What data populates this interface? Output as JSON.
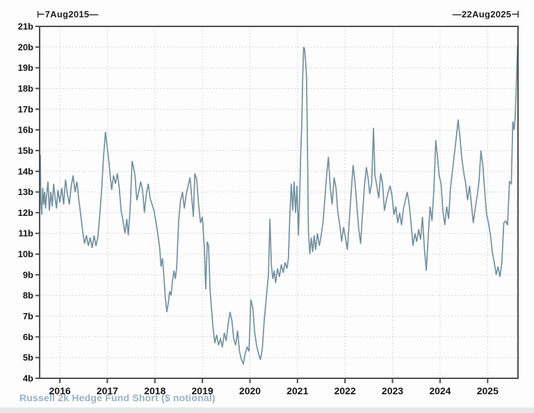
{
  "chart": {
    "start_annotation": "⊢7Aug2015—",
    "end_annotation": "—22Aug2025⊣",
    "footer_label": "Russell 2k Hedge Fund Short ($ notional)",
    "footer_color": "#9ab0c4",
    "frame_color": "#4d4d4d",
    "grid_color": "#c7c7c7"
  },
  "chart_data": {
    "type": "line",
    "title": "Russell 2k Hedge Fund Short ($ notional)",
    "xlabel": "",
    "ylabel": "",
    "x_start_label": "7Aug2015",
    "x_end_label": "22Aug2025",
    "x_range": [
      2015.575,
      2025.64
    ],
    "y_range": [
      4,
      21
    ],
    "grid": "dotted",
    "legend": "none",
    "line_color": "#73909e",
    "y_ticks": [
      {
        "value": 21,
        "label": "21b"
      },
      {
        "value": 20,
        "label": "20b"
      },
      {
        "value": 19,
        "label": "19b"
      },
      {
        "value": 18,
        "label": "18b"
      },
      {
        "value": 17,
        "label": "17b"
      },
      {
        "value": 16,
        "label": "16b"
      },
      {
        "value": 15,
        "label": "15b"
      },
      {
        "value": 14,
        "label": "14b"
      },
      {
        "value": 13,
        "label": "13b"
      },
      {
        "value": 12,
        "label": "12b"
      },
      {
        "value": 11,
        "label": "11b"
      },
      {
        "value": 10,
        "label": "10b"
      },
      {
        "value": 9,
        "label": "9b"
      },
      {
        "value": 8,
        "label": "8b"
      },
      {
        "value": 7,
        "label": "7b"
      },
      {
        "value": 6,
        "label": "6b"
      },
      {
        "value": 5,
        "label": "5b"
      },
      {
        "value": 4,
        "label": "4b"
      }
    ],
    "x_ticks": [
      {
        "value": 2016,
        "label": "2016"
      },
      {
        "value": 2017,
        "label": "2017"
      },
      {
        "value": 2018,
        "label": "2018"
      },
      {
        "value": 2019,
        "label": "2019"
      },
      {
        "value": 2020,
        "label": "2020"
      },
      {
        "value": 2021,
        "label": "2021"
      },
      {
        "value": 2022,
        "label": "2022"
      },
      {
        "value": 2023,
        "label": "2023"
      },
      {
        "value": 2024,
        "label": "2024"
      },
      {
        "value": 2025,
        "label": "2025"
      }
    ],
    "series": [
      {
        "name": "Russell 2k Hedge Fund Short ($ notional)",
        "points": [
          [
            2015.58,
            14.1
          ],
          [
            2015.59,
            14.8
          ],
          [
            2015.6,
            12.6
          ],
          [
            2015.62,
            11.9
          ],
          [
            2015.64,
            13.2
          ],
          [
            2015.66,
            12.4
          ],
          [
            2015.68,
            13.0
          ],
          [
            2015.7,
            12.2
          ],
          [
            2015.72,
            12.8
          ],
          [
            2015.75,
            13.5
          ],
          [
            2015.78,
            12.1
          ],
          [
            2015.81,
            13.0
          ],
          [
            2015.84,
            12.3
          ],
          [
            2015.87,
            13.4
          ],
          [
            2015.9,
            12.7
          ],
          [
            2015.93,
            12.2
          ],
          [
            2015.96,
            13.1
          ],
          [
            2016.0,
            12.5
          ],
          [
            2016.04,
            13.2
          ],
          [
            2016.08,
            12.4
          ],
          [
            2016.12,
            13.6
          ],
          [
            2016.16,
            12.9
          ],
          [
            2016.2,
            12.4
          ],
          [
            2016.24,
            13.3
          ],
          [
            2016.28,
            13.8
          ],
          [
            2016.32,
            13.0
          ],
          [
            2016.36,
            13.5
          ],
          [
            2016.4,
            12.6
          ],
          [
            2016.44,
            11.9
          ],
          [
            2016.48,
            11.1
          ],
          [
            2016.52,
            10.5
          ],
          [
            2016.56,
            10.9
          ],
          [
            2016.6,
            10.4
          ],
          [
            2016.64,
            10.8
          ],
          [
            2016.68,
            10.3
          ],
          [
            2016.72,
            10.9
          ],
          [
            2016.76,
            10.4
          ],
          [
            2016.8,
            10.8
          ],
          [
            2016.84,
            11.9
          ],
          [
            2016.88,
            13.1
          ],
          [
            2016.92,
            14.7
          ],
          [
            2016.96,
            15.9
          ],
          [
            2016.99,
            15.3
          ],
          [
            2017.03,
            14.5
          ],
          [
            2017.06,
            13.8
          ],
          [
            2017.09,
            13.1
          ],
          [
            2017.13,
            13.8
          ],
          [
            2017.17,
            13.4
          ],
          [
            2017.21,
            13.9
          ],
          [
            2017.25,
            13.2
          ],
          [
            2017.29,
            12.1
          ],
          [
            2017.33,
            11.6
          ],
          [
            2017.37,
            11.0
          ],
          [
            2017.41,
            11.7
          ],
          [
            2017.44,
            10.9
          ],
          [
            2017.48,
            12.2
          ],
          [
            2017.52,
            14.5
          ],
          [
            2017.55,
            14.2
          ],
          [
            2017.58,
            13.8
          ],
          [
            2017.62,
            12.6
          ],
          [
            2017.66,
            13.0
          ],
          [
            2017.7,
            13.5
          ],
          [
            2017.74,
            13.1
          ],
          [
            2017.78,
            12.0
          ],
          [
            2017.82,
            12.9
          ],
          [
            2017.86,
            13.4
          ],
          [
            2017.9,
            12.7
          ],
          [
            2017.94,
            12.4
          ],
          [
            2017.98,
            12.1
          ],
          [
            2018.02,
            11.6
          ],
          [
            2018.06,
            11.0
          ],
          [
            2018.1,
            10.3
          ],
          [
            2018.13,
            9.4
          ],
          [
            2018.16,
            9.8
          ],
          [
            2018.19,
            8.9
          ],
          [
            2018.22,
            7.9
          ],
          [
            2018.25,
            7.2
          ],
          [
            2018.28,
            7.6
          ],
          [
            2018.31,
            8.2
          ],
          [
            2018.34,
            8.0
          ],
          [
            2018.37,
            8.7
          ],
          [
            2018.4,
            9.2
          ],
          [
            2018.43,
            8.8
          ],
          [
            2018.46,
            9.4
          ],
          [
            2018.5,
            11.6
          ],
          [
            2018.54,
            12.6
          ],
          [
            2018.58,
            13.0
          ],
          [
            2018.62,
            12.2
          ],
          [
            2018.66,
            12.9
          ],
          [
            2018.7,
            13.3
          ],
          [
            2018.74,
            13.7
          ],
          [
            2018.78,
            12.6
          ],
          [
            2018.81,
            11.8
          ],
          [
            2018.84,
            13.9
          ],
          [
            2018.88,
            13.6
          ],
          [
            2018.92,
            12.4
          ],
          [
            2018.96,
            11.5
          ],
          [
            2019.0,
            11.8
          ],
          [
            2019.04,
            10.3
          ],
          [
            2019.07,
            8.3
          ],
          [
            2019.1,
            10.6
          ],
          [
            2019.13,
            10.4
          ],
          [
            2019.16,
            8.3
          ],
          [
            2019.19,
            7.4
          ],
          [
            2019.22,
            6.5
          ],
          [
            2019.26,
            5.7
          ],
          [
            2019.3,
            6.1
          ],
          [
            2019.34,
            5.6
          ],
          [
            2019.38,
            5.9
          ],
          [
            2019.42,
            5.5
          ],
          [
            2019.46,
            6.2
          ],
          [
            2019.5,
            5.8
          ],
          [
            2019.54,
            6.6
          ],
          [
            2019.58,
            7.2
          ],
          [
            2019.62,
            6.8
          ],
          [
            2019.66,
            5.9
          ],
          [
            2019.7,
            5.6
          ],
          [
            2019.74,
            6.3
          ],
          [
            2019.78,
            5.3
          ],
          [
            2019.82,
            4.9
          ],
          [
            2019.86,
            4.7
          ],
          [
            2019.9,
            5.2
          ],
          [
            2019.94,
            5.5
          ],
          [
            2019.98,
            5.3
          ],
          [
            2020.02,
            7.8
          ],
          [
            2020.06,
            7.4
          ],
          [
            2020.1,
            6.2
          ],
          [
            2020.14,
            5.6
          ],
          [
            2020.18,
            5.2
          ],
          [
            2020.22,
            4.9
          ],
          [
            2020.26,
            5.4
          ],
          [
            2020.3,
            6.8
          ],
          [
            2020.33,
            7.5
          ],
          [
            2020.36,
            8.3
          ],
          [
            2020.39,
            9.0
          ],
          [
            2020.42,
            11.7
          ],
          [
            2020.45,
            9.5
          ],
          [
            2020.48,
            8.8
          ],
          [
            2020.51,
            9.2
          ],
          [
            2020.54,
            8.6
          ],
          [
            2020.58,
            9.3
          ],
          [
            2020.62,
            8.9
          ],
          [
            2020.66,
            9.5
          ],
          [
            2020.7,
            9.1
          ],
          [
            2020.74,
            9.6
          ],
          [
            2020.78,
            9.3
          ],
          [
            2020.81,
            9.8
          ],
          [
            2020.84,
            11.9
          ],
          [
            2020.87,
            13.4
          ],
          [
            2020.9,
            12.1
          ],
          [
            2020.93,
            13.5
          ],
          [
            2020.96,
            12.0
          ],
          [
            2020.99,
            13.3
          ],
          [
            2021.02,
            10.9
          ],
          [
            2021.05,
            13.0
          ],
          [
            2021.07,
            15.0
          ],
          [
            2021.09,
            16.2
          ],
          [
            2021.11,
            18.5
          ],
          [
            2021.13,
            20.0
          ],
          [
            2021.15,
            19.9
          ],
          [
            2021.17,
            19.3
          ],
          [
            2021.19,
            18.6
          ],
          [
            2021.21,
            15.2
          ],
          [
            2021.23,
            11.1
          ],
          [
            2021.26,
            10.0
          ],
          [
            2021.29,
            10.8
          ],
          [
            2021.32,
            10.1
          ],
          [
            2021.35,
            10.9
          ],
          [
            2021.38,
            10.2
          ],
          [
            2021.42,
            11.0
          ],
          [
            2021.46,
            10.4
          ],
          [
            2021.5,
            10.9
          ],
          [
            2021.54,
            11.6
          ],
          [
            2021.58,
            12.8
          ],
          [
            2021.62,
            14.0
          ],
          [
            2021.65,
            14.7
          ],
          [
            2021.69,
            13.2
          ],
          [
            2021.73,
            12.4
          ],
          [
            2021.77,
            13.7
          ],
          [
            2021.81,
            13.2
          ],
          [
            2021.85,
            12.0
          ],
          [
            2021.89,
            11.4
          ],
          [
            2021.93,
            10.6
          ],
          [
            2021.97,
            11.3
          ],
          [
            2022.01,
            10.8
          ],
          [
            2022.05,
            10.2
          ],
          [
            2022.09,
            11.6
          ],
          [
            2022.13,
            13.0
          ],
          [
            2022.17,
            14.3
          ],
          [
            2022.21,
            13.5
          ],
          [
            2022.25,
            12.3
          ],
          [
            2022.29,
            11.2
          ],
          [
            2022.33,
            10.5
          ],
          [
            2022.37,
            12.0
          ],
          [
            2022.41,
            13.3
          ],
          [
            2022.45,
            14.2
          ],
          [
            2022.49,
            13.6
          ],
          [
            2022.52,
            12.9
          ],
          [
            2022.56,
            13.4
          ],
          [
            2022.6,
            16.1
          ],
          [
            2022.63,
            13.8
          ],
          [
            2022.67,
            13.3
          ],
          [
            2022.71,
            12.7
          ],
          [
            2022.75,
            13.9
          ],
          [
            2022.79,
            13.4
          ],
          [
            2022.83,
            12.1
          ],
          [
            2022.87,
            12.6
          ],
          [
            2022.91,
            13.0
          ],
          [
            2022.95,
            13.3
          ],
          [
            2022.99,
            12.8
          ],
          [
            2023.03,
            11.9
          ],
          [
            2023.07,
            12.3
          ],
          [
            2023.11,
            11.5
          ],
          [
            2023.15,
            12.0
          ],
          [
            2023.19,
            11.4
          ],
          [
            2023.23,
            12.2
          ],
          [
            2023.27,
            12.6
          ],
          [
            2023.31,
            13.0
          ],
          [
            2023.35,
            12.4
          ],
          [
            2023.39,
            11.5
          ],
          [
            2023.43,
            10.4
          ],
          [
            2023.47,
            11.0
          ],
          [
            2023.51,
            10.6
          ],
          [
            2023.55,
            11.2
          ],
          [
            2023.59,
            10.7
          ],
          [
            2023.63,
            11.8
          ],
          [
            2023.67,
            10.3
          ],
          [
            2023.71,
            9.2
          ],
          [
            2023.75,
            10.8
          ],
          [
            2023.79,
            12.3
          ],
          [
            2023.83,
            11.6
          ],
          [
            2023.87,
            13.1
          ],
          [
            2023.91,
            15.5
          ],
          [
            2023.95,
            14.6
          ],
          [
            2023.98,
            13.8
          ],
          [
            2024.02,
            13.4
          ],
          [
            2024.06,
            12.1
          ],
          [
            2024.1,
            11.4
          ],
          [
            2024.14,
            12.3
          ],
          [
            2024.18,
            11.7
          ],
          [
            2024.22,
            13.2
          ],
          [
            2024.26,
            14.0
          ],
          [
            2024.3,
            14.8
          ],
          [
            2024.34,
            15.6
          ],
          [
            2024.38,
            16.5
          ],
          [
            2024.42,
            15.6
          ],
          [
            2024.46,
            14.6
          ],
          [
            2024.5,
            13.9
          ],
          [
            2024.54,
            13.4
          ],
          [
            2024.58,
            12.6
          ],
          [
            2024.62,
            13.3
          ],
          [
            2024.66,
            12.4
          ],
          [
            2024.7,
            11.5
          ],
          [
            2024.74,
            12.2
          ],
          [
            2024.78,
            12.8
          ],
          [
            2024.82,
            13.5
          ],
          [
            2024.86,
            15.0
          ],
          [
            2024.9,
            14.3
          ],
          [
            2024.94,
            13.0
          ],
          [
            2024.98,
            11.9
          ],
          [
            2025.02,
            11.5
          ],
          [
            2025.06,
            10.9
          ],
          [
            2025.1,
            10.1
          ],
          [
            2025.14,
            9.6
          ],
          [
            2025.18,
            9.0
          ],
          [
            2025.22,
            9.4
          ],
          [
            2025.26,
            8.9
          ],
          [
            2025.3,
            9.6
          ],
          [
            2025.34,
            11.5
          ],
          [
            2025.38,
            11.6
          ],
          [
            2025.42,
            11.4
          ],
          [
            2025.46,
            13.5
          ],
          [
            2025.5,
            13.4
          ],
          [
            2025.53,
            16.4
          ],
          [
            2025.56,
            16.0
          ],
          [
            2025.58,
            16.6
          ],
          [
            2025.6,
            17.8
          ],
          [
            2025.63,
            20.1
          ]
        ]
      }
    ]
  }
}
